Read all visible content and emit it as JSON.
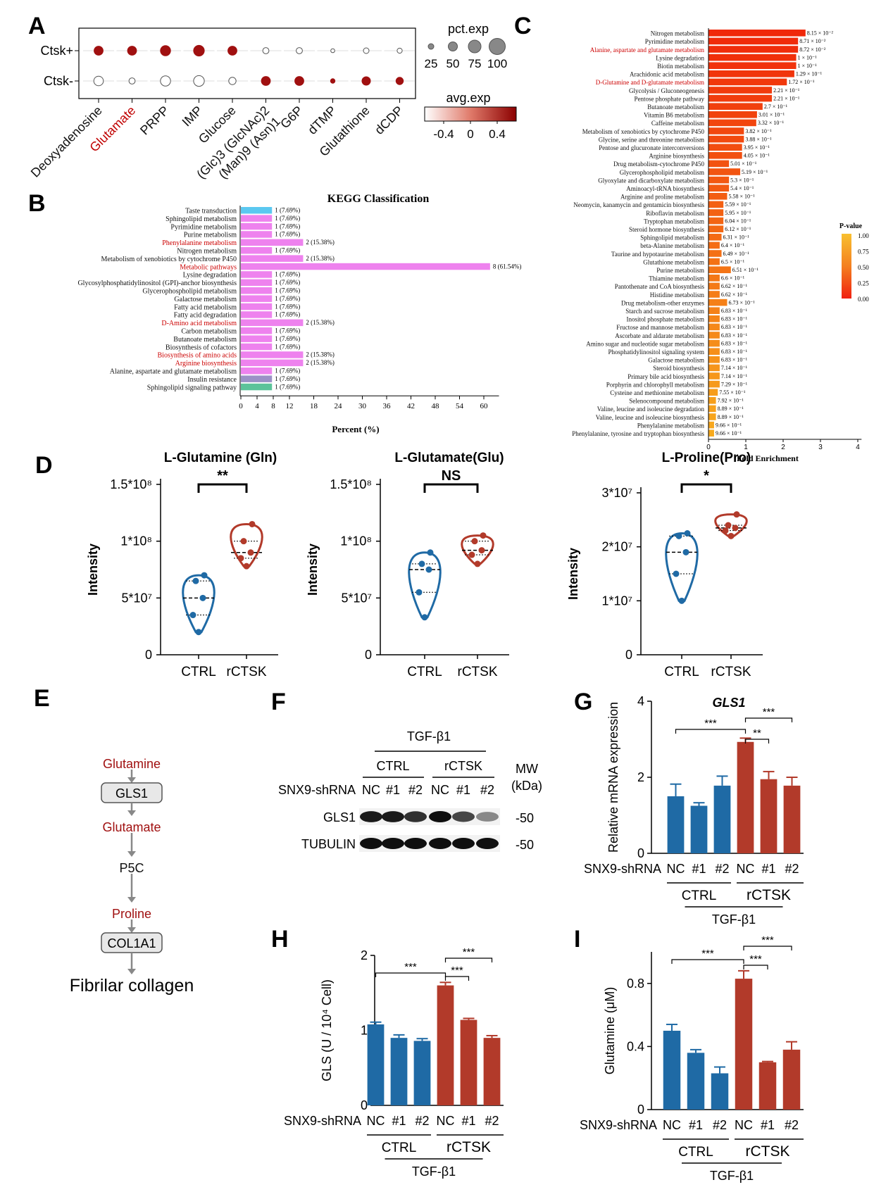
{
  "panels": {
    "A": "A",
    "B": "B",
    "C": "C",
    "D": "D",
    "E": "E",
    "F": "F",
    "G": "G",
    "H": "H",
    "I": "I"
  },
  "colors": {
    "blue": "#1f6aa5",
    "red": "#b23a2a",
    "darkred": "#a01010",
    "pink": "#ee82ee",
    "kegg_red": "#cc0000",
    "orange_hi": "#f06010",
    "orange_lo": "#f7a020"
  },
  "panelA": {
    "rows": [
      "Ctsk+",
      "Ctsk-"
    ],
    "cols": [
      "Deoxyadenosine",
      "Glutamate",
      "PRPP",
      "IMP",
      "Glucose",
      "(Glc)3 (GlcNAc)2",
      "(Man)9 (Asn)1",
      "G6P",
      "dTMP",
      "Glutathione",
      "dCDP"
    ],
    "col_wrap": [
      [
        "Deoxyadenosine"
      ],
      [
        "Glutamate"
      ],
      [
        "PRPP"
      ],
      [
        "IMP"
      ],
      [
        "Glucose"
      ],
      [
        "(Glc)3 (GlcNAc)2",
        "(Man)9 (Asn)1"
      ],
      [
        "G6P"
      ],
      [
        "dTMP"
      ],
      [
        "Glutathione"
      ],
      [
        "dCDP"
      ]
    ],
    "highlight_col": "Glutamate",
    "pct_exp": [
      [
        55,
        55,
        65,
        70,
        55,
        30,
        30,
        10,
        25,
        20
      ],
      [
        60,
        30,
        65,
        70,
        40,
        55,
        55,
        15,
        50,
        40
      ]
    ],
    "avg_exp": [
      [
        0.5,
        0.5,
        0.5,
        0.5,
        0.5,
        -0.5,
        -0.5,
        -0.5,
        -0.5,
        -0.5
      ],
      [
        -0.5,
        -0.5,
        -0.5,
        -0.5,
        -0.5,
        0.5,
        0.5,
        0.5,
        0.5,
        0.5
      ]
    ],
    "legend_size_title": "pct.exp",
    "legend_sizes": [
      25,
      50,
      75,
      100
    ],
    "legend_color_title": "avg.exp",
    "legend_color_ticks": [
      "-0.4",
      "0",
      "0.4"
    ]
  },
  "panelB": {
    "title": "KEGG Classification",
    "xlabel": "Percent (%)",
    "xticks": [
      0,
      4,
      8,
      12,
      18,
      24,
      30,
      36,
      42,
      48,
      54,
      60
    ],
    "bars": [
      {
        "label": "Taste transduction",
        "pct": 7.69,
        "count": 1,
        "text": "1 (7.69%)",
        "color": "#5bc8f0",
        "red": false
      },
      {
        "label": "Sphingolipid metabolism",
        "pct": 7.69,
        "count": 1,
        "text": "1 (7.69%)",
        "color": "#ee82ee",
        "red": false
      },
      {
        "label": "Pyrimidine metabolism",
        "pct": 7.69,
        "count": 1,
        "text": "1 (7.69%)",
        "color": "#ee82ee",
        "red": false
      },
      {
        "label": "Purine metabolism",
        "pct": 7.69,
        "count": 1,
        "text": "1 (7.69%)",
        "color": "#ee82ee",
        "red": false
      },
      {
        "label": "Phenylalanine metabolism",
        "pct": 15.38,
        "count": 2,
        "text": "2 (15.38%)",
        "color": "#ee82ee",
        "red": true
      },
      {
        "label": "Nitrogen metabolism",
        "pct": 7.69,
        "count": 1,
        "text": "1 (7.69%)",
        "color": "#ee82ee",
        "red": false
      },
      {
        "label": "Metabolism of xenobiotics by cytochrome P450",
        "pct": 15.38,
        "count": 2,
        "text": "2 (15.38%)",
        "color": "#ee82ee",
        "red": false
      },
      {
        "label": "Metabolic pathways",
        "pct": 61.54,
        "count": 8,
        "text": "8 (61.54%)",
        "color": "#ee82ee",
        "red": true
      },
      {
        "label": "Lysine degradation",
        "pct": 7.69,
        "count": 1,
        "text": "1 (7.69%)",
        "color": "#ee82ee",
        "red": false
      },
      {
        "label": "Glycosylphosphatidylinositol (GPI)-anchor biosynthesis",
        "pct": 7.69,
        "count": 1,
        "text": "1 (7.69%)",
        "color": "#ee82ee",
        "red": false
      },
      {
        "label": "Glycerophospholipid metabolism",
        "pct": 7.69,
        "count": 1,
        "text": "1 (7.69%)",
        "color": "#ee82ee",
        "red": false
      },
      {
        "label": "Galactose metabolism",
        "pct": 7.69,
        "count": 1,
        "text": "1 (7.69%)",
        "color": "#ee82ee",
        "red": false
      },
      {
        "label": "Fatty acid metabolism",
        "pct": 7.69,
        "count": 1,
        "text": "1 (7.69%)",
        "color": "#ee82ee",
        "red": false
      },
      {
        "label": "Fatty acid degradation",
        "pct": 7.69,
        "count": 1,
        "text": "1 (7.69%)",
        "color": "#ee82ee",
        "red": false
      },
      {
        "label": "D-Amino acid metabolism",
        "pct": 15.38,
        "count": 2,
        "text": "2 (15.38%)",
        "color": "#ee82ee",
        "red": true
      },
      {
        "label": "Carbon metabolism",
        "pct": 7.69,
        "count": 1,
        "text": "1 (7.69%)",
        "color": "#ee82ee",
        "red": false
      },
      {
        "label": "Butanoate metabolism",
        "pct": 7.69,
        "count": 1,
        "text": "1 (7.69%)",
        "color": "#ee82ee",
        "red": false
      },
      {
        "label": "Biosynthesis of cofactors",
        "pct": 7.69,
        "count": 1,
        "text": "1 (7.69%)",
        "color": "#ee82ee",
        "red": false
      },
      {
        "label": "Biosynthesis of amino acids",
        "pct": 15.38,
        "count": 2,
        "text": "2 (15.38%)",
        "color": "#ee82ee",
        "red": true
      },
      {
        "label": "Arginine biosynthesis",
        "pct": 15.38,
        "count": 2,
        "text": "2 (15.38%)",
        "color": "#ee82ee",
        "red": true
      },
      {
        "label": "Alanine, aspartate and glutamate metabolism",
        "pct": 7.69,
        "count": 1,
        "text": "1 (7.69%)",
        "color": "#ee82ee",
        "red": false
      },
      {
        "label": "Insulin resistance",
        "pct": 7.69,
        "count": 1,
        "text": "1 (7.69%)",
        "color": "#9b91c6",
        "red": false
      },
      {
        "label": "Sphingolipid signaling pathway",
        "pct": 7.69,
        "count": 1,
        "text": "1 (7.69%)",
        "color": "#5cc39a",
        "red": false
      }
    ]
  },
  "panelC": {
    "xlabel": "Fold Enrichment",
    "xticks": [
      0,
      1,
      2,
      3,
      4
    ],
    "legend_title": "P-value",
    "legend_ticks": [
      "1.00",
      "0.75",
      "0.50",
      "0.25",
      "0.00"
    ],
    "bars": [
      {
        "label": "Nitrogen metabolism",
        "fe": 2.6,
        "p": "8.15 × 10⁻²",
        "red": false
      },
      {
        "label": "Pyrimidine metabolism",
        "fe": 2.4,
        "p": "8.71 × 10⁻²",
        "red": false
      },
      {
        "label": "Alanine, aspartate and glutamate metabolism",
        "fe": 2.4,
        "p": "8.72 × 10⁻²",
        "red": true
      },
      {
        "label": "Lysine degradation",
        "fe": 2.35,
        "p": "1 × 10⁻¹",
        "red": false
      },
      {
        "label": "Biotin metabolism",
        "fe": 2.35,
        "p": "1 × 10⁻¹",
        "red": false
      },
      {
        "label": "Arachidonic acid metabolism",
        "fe": 2.3,
        "p": "1.29 × 10⁻¹",
        "red": false
      },
      {
        "label": "D-Glutamine and D-glutamate metabolism",
        "fe": 2.1,
        "p": "1.72 × 10⁻¹",
        "red": true
      },
      {
        "label": "Glycolysis / Gluconeogenesis",
        "fe": 1.7,
        "p": "2.21 × 10⁻¹",
        "red": false
      },
      {
        "label": "Pentose phosphate pathway",
        "fe": 1.7,
        "p": "2.21 × 10⁻¹",
        "red": false
      },
      {
        "label": "Butanoate metabolism",
        "fe": 1.45,
        "p": "2.7 × 10⁻¹",
        "red": false
      },
      {
        "label": "Vitamin B6 metabolism",
        "fe": 1.3,
        "p": "3.01 × 10⁻¹",
        "red": false
      },
      {
        "label": "Caffeine metabolism",
        "fe": 1.28,
        "p": "3.32 × 10⁻¹",
        "red": false
      },
      {
        "label": "Metabolism of xenobiotics by cytochrome P450",
        "fe": 0.95,
        "p": "3.82 × 10⁻¹",
        "red": false
      },
      {
        "label": "Glycine, serine and threonine metabolism",
        "fe": 0.95,
        "p": "3.88 × 10⁻¹",
        "red": false
      },
      {
        "label": "Pentose and glucuronate interconversions",
        "fe": 0.9,
        "p": "3.95 × 10⁻¹",
        "red": false
      },
      {
        "label": "Arginine biosynthesis",
        "fe": 0.9,
        "p": "4.05 × 10⁻¹",
        "red": false
      },
      {
        "label": "Drug metabolism-cytochrome P450",
        "fe": 0.55,
        "p": "5.01 × 10⁻¹",
        "red": false
      },
      {
        "label": "Glycerophospholipid metabolism",
        "fe": 0.85,
        "p": "5.19 × 10⁻¹",
        "red": false
      },
      {
        "label": "Glyoxylate and dicarboxylate metabolism",
        "fe": 0.55,
        "p": "5.3 × 10⁻¹",
        "red": false
      },
      {
        "label": "Aminoacyl-tRNA biosynthesis",
        "fe": 0.55,
        "p": "5.4 × 10⁻¹",
        "red": false
      },
      {
        "label": "Arginine and proline metabolism",
        "fe": 0.5,
        "p": "5.58 × 10⁻¹",
        "red": false
      },
      {
        "label": "Neomycin, kanamycin and gentamicin biosynthesis",
        "fe": 0.4,
        "p": "5.59 × 10⁻¹",
        "red": false
      },
      {
        "label": "Riboflavin metabolism",
        "fe": 0.4,
        "p": "5.95 × 10⁻¹",
        "red": false
      },
      {
        "label": "Tryptophan metabolism",
        "fe": 0.4,
        "p": "6.04 × 10⁻¹",
        "red": false
      },
      {
        "label": "Steroid hormone biosynthesis",
        "fe": 0.4,
        "p": "6.12 × 10⁻¹",
        "red": false
      },
      {
        "label": "Sphingolipid metabolism",
        "fe": 0.35,
        "p": "6.31 × 10⁻¹",
        "red": false
      },
      {
        "label": "beta-Alanine metabolism",
        "fe": 0.3,
        "p": "6.4 × 10⁻¹",
        "red": false
      },
      {
        "label": "Taurine and hypotaurine metabolism",
        "fe": 0.35,
        "p": "6.49 × 10⁻¹",
        "red": false
      },
      {
        "label": "Glutathione metabolism",
        "fe": 0.3,
        "p": "6.5 × 10⁻¹",
        "red": false
      },
      {
        "label": "Purine metabolism",
        "fe": 0.6,
        "p": "6.51 × 10⁻¹",
        "red": false
      },
      {
        "label": "Thiamine metabolism",
        "fe": 0.3,
        "p": "6.6 × 10⁻¹",
        "red": false
      },
      {
        "label": "Pantothenate and CoA biosynthesis",
        "fe": 0.3,
        "p": "6.62 × 10⁻¹",
        "red": false
      },
      {
        "label": "Histidine metabolism",
        "fe": 0.3,
        "p": "6.62 × 10⁻¹",
        "red": false
      },
      {
        "label": "Drug metabolism-other enzymes",
        "fe": 0.5,
        "p": "6.73 × 10⁻¹",
        "red": false
      },
      {
        "label": "Starch and sucrose metabolism",
        "fe": 0.3,
        "p": "6.83 × 10⁻¹",
        "red": false
      },
      {
        "label": "Inositol phosphate metabolism",
        "fe": 0.3,
        "p": "6.83 × 10⁻¹",
        "red": false
      },
      {
        "label": "Fructose and mannose metabolism",
        "fe": 0.3,
        "p": "6.83 × 10⁻¹",
        "red": false
      },
      {
        "label": "Ascorbate and aldarate metabolism",
        "fe": 0.3,
        "p": "6.83 × 10⁻¹",
        "red": false
      },
      {
        "label": "Amino sugar and nucleotide sugar metabolism",
        "fe": 0.3,
        "p": "6.83 × 10⁻¹",
        "red": false
      },
      {
        "label": "Phosphatidylinositol signaling system",
        "fe": 0.3,
        "p": "6.83 × 10⁻¹",
        "red": false
      },
      {
        "label": "Galactose metabolism",
        "fe": 0.3,
        "p": "6.83 × 10⁻¹",
        "red": false
      },
      {
        "label": "Steroid biosynthesis",
        "fe": 0.3,
        "p": "7.14 × 10⁻¹",
        "red": false
      },
      {
        "label": "Primary bile acid biosynthesis",
        "fe": 0.3,
        "p": "7.14 × 10⁻¹",
        "red": false
      },
      {
        "label": "Porphyrin and chlorophyll metabolism",
        "fe": 0.3,
        "p": "7.29 × 10⁻¹",
        "red": false
      },
      {
        "label": "Cysteine and methionine metabolism",
        "fe": 0.25,
        "p": "7.55 × 10⁻¹",
        "red": false
      },
      {
        "label": "Selenocompound metabolism",
        "fe": 0.2,
        "p": "7.92 × 10⁻¹",
        "red": false
      },
      {
        "label": "Valine, leucine and isoleucine degradation",
        "fe": 0.2,
        "p": "8.89 × 10⁻¹",
        "red": false
      },
      {
        "label": "Valine, leucine and isoleucine biosynthesis",
        "fe": 0.2,
        "p": "8.89 × 10⁻¹",
        "red": false
      },
      {
        "label": "Phenylalanine metabolism",
        "fe": 0.15,
        "p": "9.66 × 10⁻¹",
        "red": false
      },
      {
        "label": "Phenylalanine, tyrosine and tryptophan biosynthesis",
        "fe": 0.15,
        "p": "9.66 × 10⁻¹",
        "red": false
      }
    ]
  },
  "panelD": {
    "ylabel": "Intensity",
    "groups": [
      "CTRL",
      "rCTSK"
    ],
    "plots": [
      {
        "title": "L-Glutamine (Gln)",
        "sig": "**",
        "ymax": 150000000,
        "yticks": [
          0,
          50000000,
          100000000,
          150000000
        ],
        "ytick_labels": [
          "0",
          "5*10⁷",
          "1*10⁸",
          "1.5*10⁸"
        ],
        "ctrl": [
          20000000,
          35000000,
          50000000,
          65000000,
          70000000
        ],
        "rctsk": [
          78000000,
          85000000,
          90000000,
          100000000,
          115000000
        ]
      },
      {
        "title": "L-Glutamate(Glu)",
        "sig": "NS",
        "ymax": 150000000,
        "yticks": [
          0,
          50000000,
          100000000,
          150000000
        ],
        "ytick_labels": [
          "0",
          "5*10⁷",
          "1*10⁸",
          "1.5*10⁸"
        ],
        "ctrl": [
          33000000,
          55000000,
          75000000,
          80000000,
          90000000
        ],
        "rctsk": [
          80000000,
          88000000,
          92000000,
          100000000,
          105000000
        ]
      },
      {
        "title": "L-Proline(Pro)",
        "sig": "*",
        "ymax": 30000000,
        "yticks": [
          0,
          10000000,
          20000000,
          30000000
        ],
        "ytick_labels": [
          "0",
          "1*10⁷",
          "2*10⁷",
          "3*10⁷"
        ],
        "ctrl": [
          10000000,
          15000000,
          19000000,
          22000000,
          22500000
        ],
        "rctsk": [
          22000000,
          23000000,
          23500000,
          24000000,
          26000000
        ]
      }
    ]
  },
  "panelE": {
    "nodes": [
      {
        "text": "Glutamine",
        "type": "metabolite"
      },
      {
        "text": "GLS1",
        "type": "enzyme"
      },
      {
        "text": "Glutamate",
        "type": "metabolite"
      },
      {
        "text": "P5C",
        "type": "plain"
      },
      {
        "text": "Proline",
        "type": "metabolite"
      },
      {
        "text": "COL1A1",
        "type": "enzyme"
      },
      {
        "text": "Fibrilar collagen",
        "type": "final"
      }
    ]
  },
  "panelF": {
    "treatment": "TGF-β1",
    "groups": [
      "CTRL",
      "rCTSK"
    ],
    "shrna_label": "SNX9-shRNA",
    "lanes": [
      "NC",
      "#1",
      "#2",
      "NC",
      "#1",
      "#2"
    ],
    "mw_label": "MW",
    "mw_unit": "(kDa)",
    "rows": [
      {
        "name": "GLS1",
        "mw": "-50",
        "intensity": [
          0.95,
          0.95,
          0.85,
          1.0,
          0.75,
          0.45
        ]
      },
      {
        "name": "TUBULIN",
        "mw": "-50",
        "intensity": [
          1.0,
          1.0,
          1.0,
          1.0,
          1.0,
          1.0
        ]
      }
    ]
  },
  "panelG": {
    "title": "GLS1",
    "ylabel": "Relative mRNA expression",
    "ymax": 4,
    "yticks": [
      0,
      2,
      4
    ],
    "xlabel_prefix": "SNX9-shRNA",
    "lanes": [
      "NC",
      "#1",
      "#2",
      "NC",
      "#1",
      "#2"
    ],
    "groups": [
      "CTRL",
      "rCTSK"
    ],
    "treatment": "TGF-β1",
    "values": [
      1.5,
      1.25,
      1.78,
      2.93,
      1.95,
      1.78
    ],
    "errors": [
      0.32,
      0.08,
      0.25,
      0.1,
      0.2,
      0.22
    ],
    "sig": [
      {
        "from": 0,
        "to": 3,
        "text": "***"
      },
      {
        "from": 3,
        "to": 4,
        "text": "**"
      },
      {
        "from": 3,
        "to": 5,
        "text": "***"
      }
    ]
  },
  "panelH": {
    "ylabel": "GLS (U / 10⁴ Cell)",
    "ymax": 2,
    "yticks": [
      0,
      1,
      2
    ],
    "xlabel_prefix": "SNX9-shRNA",
    "lanes": [
      "NC",
      "#1",
      "#2",
      "NC",
      "#1",
      "#2"
    ],
    "groups": [
      "CTRL",
      "rCTSK"
    ],
    "treatment": "TGF-β1",
    "values": [
      1.08,
      0.9,
      0.86,
      1.6,
      1.14,
      0.9
    ],
    "errors": [
      0.03,
      0.04,
      0.03,
      0.04,
      0.02,
      0.03
    ],
    "sig": [
      {
        "from": 0,
        "to": 3,
        "text": "***"
      },
      {
        "from": 3,
        "to": 4,
        "text": "***"
      },
      {
        "from": 3,
        "to": 5,
        "text": "***"
      }
    ]
  },
  "panelI": {
    "ylabel": "Glutamine (μM)",
    "ymax": 1.0,
    "yticks": [
      0,
      0.4,
      0.8
    ],
    "ytick_labels": [
      "0",
      "0.4",
      "0.8"
    ],
    "xlabel_prefix": "SNX9-shRNA",
    "lanes": [
      "NC",
      "#1",
      "#2",
      "NC",
      "#1",
      "#2"
    ],
    "groups": [
      "CTRL",
      "rCTSK"
    ],
    "treatment": "TGF-β1",
    "values": [
      0.5,
      0.36,
      0.23,
      0.83,
      0.3,
      0.38
    ],
    "errors": [
      0.04,
      0.02,
      0.04,
      0.05,
      0.005,
      0.05
    ],
    "sig": [
      {
        "from": 0,
        "to": 3,
        "text": "***"
      },
      {
        "from": 3,
        "to": 4,
        "text": "***"
      },
      {
        "from": 3,
        "to": 5,
        "text": "***"
      }
    ]
  }
}
